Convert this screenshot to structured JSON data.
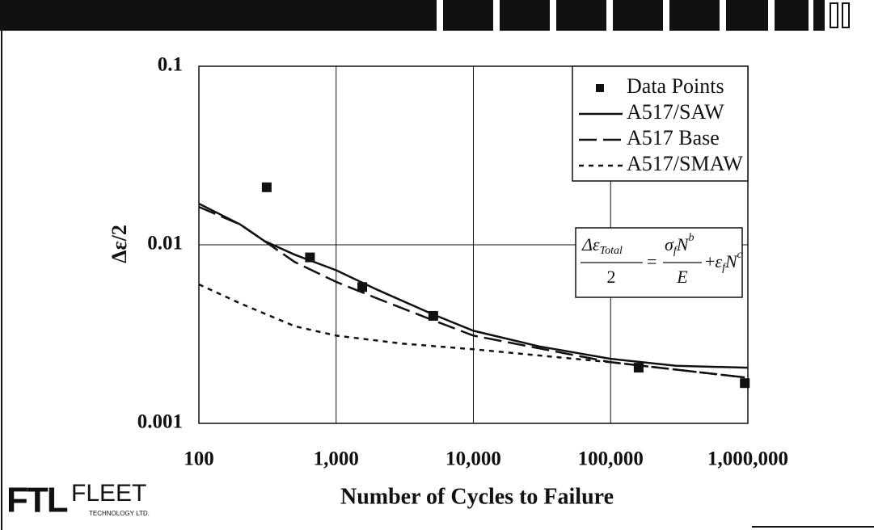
{
  "chart_data": {
    "type": "line",
    "xlabel": "Number of Cycles to Failure",
    "ylabel": "Δε/2",
    "xlim": [
      100,
      1000000
    ],
    "ylim": [
      0.001,
      0.1
    ],
    "xscale": "log",
    "yscale": "log",
    "grid": true,
    "legend": "upper right",
    "xticks": [
      100,
      {
        "value": 1000,
        "label": "1,000"
      },
      {
        "value": 10000,
        "label": "10,000"
      },
      {
        "value": 100000,
        "label": "100,000"
      },
      {
        "value": 1000000,
        "label": "1,000,000"
      }
    ],
    "yticks": [
      0.001,
      0.01,
      0.1
    ],
    "series": [
      {
        "name": "Data Points",
        "color": "#111111",
        "marker": "square",
        "line_style": "none",
        "x": [
          312,
          645,
          1550,
          5100,
          160000,
          950000
        ],
        "values": [
          0.021,
          0.0085,
          0.0058,
          0.004,
          0.00205,
          0.00168
        ]
      },
      {
        "name": "A517/SAW",
        "color": "#111111",
        "marker": "none",
        "line_style": "solid",
        "x": [
          100,
          200,
          300,
          500,
          1000,
          2000,
          5000,
          10000,
          30000,
          100000,
          300000,
          1000000
        ],
        "values": [
          0.017,
          0.013,
          0.0105,
          0.0088,
          0.0072,
          0.0056,
          0.0041,
          0.0033,
          0.0027,
          0.0023,
          0.0021,
          0.00205
        ]
      },
      {
        "name": "A517 Base",
        "color": "#111111",
        "marker": "none",
        "line_style": "dashed",
        "x": [
          100,
          200,
          300,
          500,
          1000,
          2000,
          5000,
          10000,
          100000,
          1000000
        ],
        "values": [
          0.0163,
          0.013,
          0.0105,
          0.008,
          0.0062,
          0.005,
          0.0038,
          0.0031,
          0.0022,
          0.0018
        ]
      },
      {
        "name": "A517/SMAW",
        "color": "#111111",
        "marker": "none",
        "line_style": "dotted",
        "x": [
          100,
          200,
          500,
          1000,
          3000,
          10000,
          100000,
          1000000
        ],
        "values": [
          0.006,
          0.0047,
          0.0035,
          0.0031,
          0.0028,
          0.0026,
          0.0022,
          0.0018
        ]
      }
    ],
    "equation": {
      "lhs": "Δε",
      "lhs_sub": "Total",
      "lhs_den": "2",
      "eq": "=",
      "t1": "σ",
      "t1_sub": "f",
      "t1_base": "N",
      "t1_exp": "b",
      "t1_den": "E",
      "plus": "+",
      "t2": "ε",
      "t2_sub": "f",
      "t2_base": "N",
      "t2_exp": "c"
    }
  },
  "logo": {
    "mark": "FTL",
    "name": "FLEET",
    "tagline": "TECHNOLOGY LTD."
  }
}
